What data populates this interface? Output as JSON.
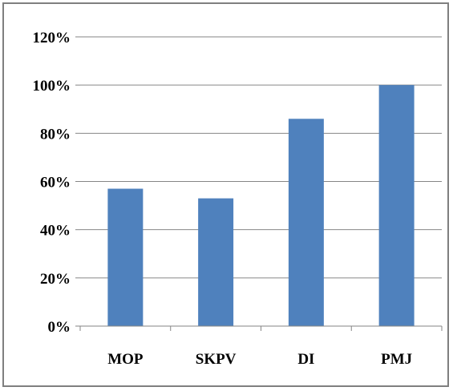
{
  "chart_data": {
    "type": "bar",
    "categories": [
      "MOP",
      "SKPV",
      "DI",
      "PMJ"
    ],
    "values": [
      57,
      53,
      86,
      100
    ],
    "value_unit": "%",
    "title": "",
    "xlabel": "",
    "ylabel": "",
    "ylim": [
      0,
      120
    ],
    "yticks": [
      0,
      20,
      40,
      60,
      80,
      100,
      120
    ],
    "ytick_labels": [
      "0%",
      "20%",
      "40%",
      "60%",
      "80%",
      "100%",
      "120%"
    ],
    "grid": true,
    "legend": "none",
    "bar_color": "#4f81bd",
    "grid_color": "#868686"
  }
}
